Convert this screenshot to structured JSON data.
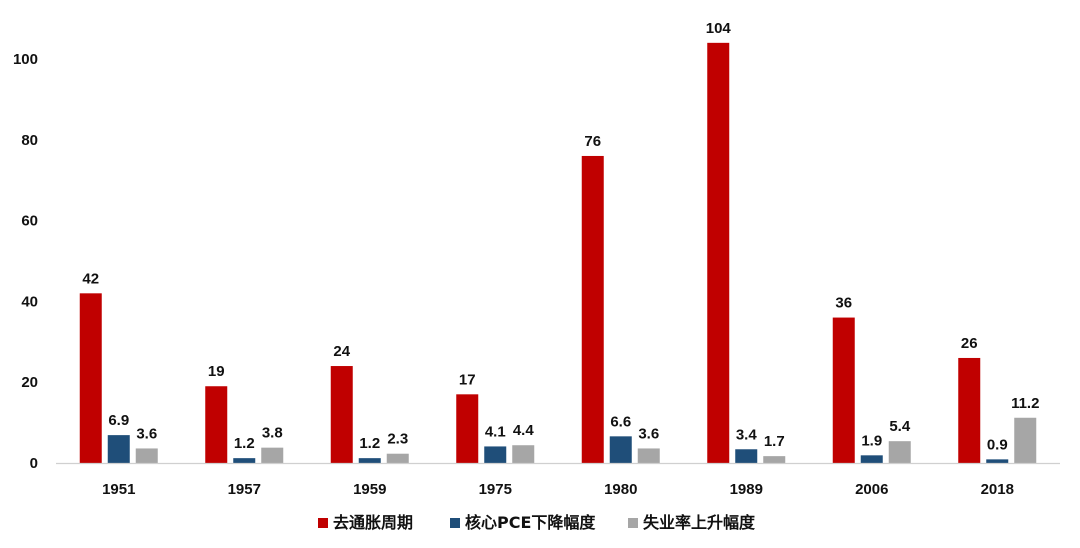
{
  "chart_data": {
    "type": "bar",
    "title": "",
    "xlabel": "",
    "ylabel": "",
    "categories": [
      "1951",
      "1957",
      "1959",
      "1975",
      "1980",
      "1989",
      "2006",
      "2018"
    ],
    "ylim": [
      0,
      110
    ],
    "yticks": [
      0,
      20,
      40,
      60,
      80,
      100
    ],
    "grid": false,
    "legend_position": "bottom",
    "series": [
      {
        "name": "去通胀周期",
        "color": "#C00000",
        "values": [
          42,
          19,
          24,
          17,
          76,
          104,
          36,
          26
        ],
        "labels": [
          "42",
          "19",
          "24",
          "17",
          "76",
          "104",
          "36",
          "26"
        ]
      },
      {
        "name": "核心PCE下降幅度",
        "color": "#1F4E79",
        "values": [
          6.9,
          1.2,
          1.2,
          4.1,
          6.6,
          3.4,
          1.9,
          0.9
        ],
        "labels": [
          "6.9",
          "1.2",
          "1.2",
          "4.1",
          "6.6",
          "3.4",
          "1.9",
          "0.9"
        ]
      },
      {
        "name": "失业率上升幅度",
        "color": "#A6A6A6",
        "values": [
          3.6,
          3.8,
          2.3,
          4.4,
          3.6,
          1.7,
          5.4,
          11.2
        ],
        "labels": [
          "3.6",
          "3.8",
          "2.3",
          "4.4",
          "3.6",
          "1.7",
          "5.4",
          "11.2"
        ]
      }
    ]
  }
}
